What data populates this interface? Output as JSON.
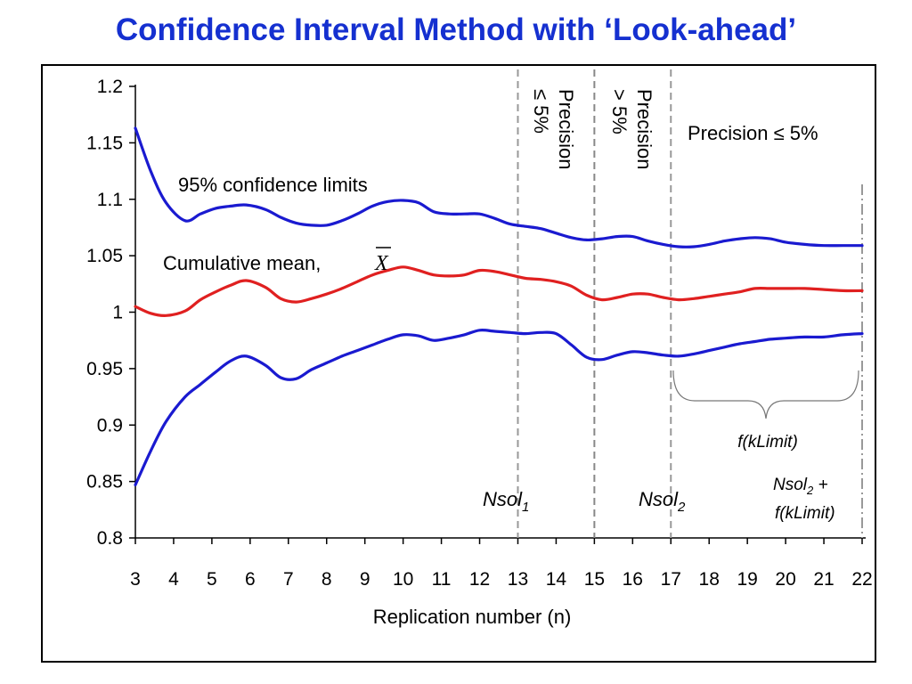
{
  "chart_data": {
    "type": "line",
    "title": "Confidence Interval Method with ‘Look-ahead’",
    "xlabel": "Replication number (n)",
    "ylabel": "",
    "xlim": [
      3,
      22
    ],
    "ylim": [
      0.8,
      1.2
    ],
    "xticks": [
      3,
      4,
      5,
      6,
      7,
      8,
      9,
      10,
      11,
      12,
      13,
      14,
      15,
      16,
      17,
      18,
      19,
      20,
      21,
      22
    ],
    "yticks": [
      "0.8",
      "0.85",
      "0.9",
      "0.95",
      "1",
      "1.05",
      "1.1",
      "1.15",
      "1.2"
    ],
    "grid": false,
    "series": [
      {
        "name": "95% confidence limits",
        "color": "#1a1ad0",
        "x": [
          3,
          3.4,
          3.8,
          4.3,
          4.7,
          5.1,
          5.5,
          5.9,
          6.4,
          6.8,
          7.2,
          7.6,
          8,
          8.4,
          8.8,
          9.2,
          9.6,
          10,
          10.4,
          10.8,
          11.2,
          11.6,
          12,
          12.4,
          12.8,
          13.2,
          13.6,
          14,
          14.4,
          14.8,
          15.2,
          15.6,
          16,
          16.4,
          16.8,
          17.2,
          17.6,
          18,
          18.4,
          18.8,
          19.2,
          19.6,
          20,
          20.5,
          21,
          21.5,
          22
        ],
        "y": [
          1.163,
          1.125,
          1.097,
          1.081,
          1.087,
          1.092,
          1.094,
          1.095,
          1.091,
          1.084,
          1.079,
          1.077,
          1.077,
          1.081,
          1.087,
          1.094,
          1.098,
          1.099,
          1.097,
          1.089,
          1.087,
          1.087,
          1.087,
          1.083,
          1.078,
          1.076,
          1.074,
          1.07,
          1.066,
          1.064,
          1.065,
          1.067,
          1.067,
          1.063,
          1.06,
          1.058,
          1.058,
          1.06,
          1.063,
          1.065,
          1.066,
          1.065,
          1.062,
          1.06,
          1.059,
          1.059,
          1.059
        ]
      },
      {
        "name": "Cumulative mean",
        "color": "#e02020",
        "x": [
          3,
          3.4,
          3.8,
          4.3,
          4.7,
          5.1,
          5.5,
          5.9,
          6.4,
          6.8,
          7.2,
          7.6,
          8,
          8.4,
          8.8,
          9.2,
          9.6,
          10,
          10.4,
          10.8,
          11.2,
          11.6,
          12,
          12.4,
          12.8,
          13.2,
          13.6,
          14,
          14.4,
          14.8,
          15.2,
          15.6,
          16,
          16.4,
          16.8,
          17.2,
          17.6,
          18,
          18.4,
          18.8,
          19.2,
          19.6,
          20,
          20.5,
          21,
          21.5,
          22
        ],
        "y": [
          1.005,
          0.999,
          0.997,
          1.001,
          1.011,
          1.018,
          1.024,
          1.028,
          1.022,
          1.012,
          1.009,
          1.012,
          1.016,
          1.021,
          1.027,
          1.033,
          1.037,
          1.04,
          1.037,
          1.033,
          1.032,
          1.033,
          1.037,
          1.036,
          1.033,
          1.03,
          1.029,
          1.027,
          1.023,
          1.015,
          1.011,
          1.013,
          1.016,
          1.016,
          1.013,
          1.011,
          1.012,
          1.014,
          1.016,
          1.018,
          1.021,
          1.021,
          1.021,
          1.021,
          1.02,
          1.019,
          1.019
        ]
      },
      {
        "name": "",
        "color": "#1a1ad0",
        "x": [
          3,
          3.4,
          3.8,
          4.3,
          4.7,
          5.1,
          5.5,
          5.9,
          6.4,
          6.8,
          7.2,
          7.6,
          8,
          8.4,
          8.8,
          9.2,
          9.6,
          10,
          10.4,
          10.8,
          11.2,
          11.6,
          12,
          12.4,
          12.8,
          13.2,
          13.6,
          14,
          14.4,
          14.8,
          15.2,
          15.6,
          16,
          16.4,
          16.8,
          17.2,
          17.6,
          18,
          18.4,
          18.8,
          19.2,
          19.6,
          20,
          20.5,
          21,
          21.5,
          22
        ],
        "y": [
          0.847,
          0.877,
          0.903,
          0.925,
          0.936,
          0.947,
          0.957,
          0.961,
          0.953,
          0.942,
          0.941,
          0.949,
          0.955,
          0.961,
          0.966,
          0.971,
          0.976,
          0.98,
          0.979,
          0.975,
          0.977,
          0.98,
          0.984,
          0.983,
          0.982,
          0.981,
          0.982,
          0.981,
          0.971,
          0.96,
          0.958,
          0.962,
          0.965,
          0.964,
          0.962,
          0.961,
          0.963,
          0.966,
          0.969,
          0.972,
          0.974,
          0.976,
          0.977,
          0.978,
          0.978,
          0.98,
          0.981
        ]
      }
    ],
    "vlines": [
      {
        "x": 13,
        "style": "dashed",
        "color": "#999999"
      },
      {
        "x": 15,
        "style": "dashed",
        "color": "#888888"
      },
      {
        "x": 17,
        "style": "dashed",
        "color": "#999999"
      },
      {
        "x": 22,
        "style": "dashdot",
        "color": "#999999"
      }
    ],
    "annotations": {
      "confidence_limits": "95% confidence limits",
      "cumulative_mean": "Cumulative mean,",
      "xbar_symbol": "X",
      "precision_le_line1": "Precision",
      "precision_le_line2": "≤ 5%",
      "precision_gt_line1": "Precision",
      "precision_gt_line2": "> 5%",
      "precision_right": "Precision ≤ 5%",
      "nsol1_base": "Nsol",
      "nsol1_sub": "1",
      "nsol2_base": "Nsol",
      "nsol2_sub": "2",
      "nsol2_plus_base": "Nsol",
      "nsol2_plus_sub": "2",
      "nsol2_plus_tail": " +",
      "fklimit_plus": "f(kLimit)",
      "fklimit_brace": "f(kLimit)"
    }
  }
}
